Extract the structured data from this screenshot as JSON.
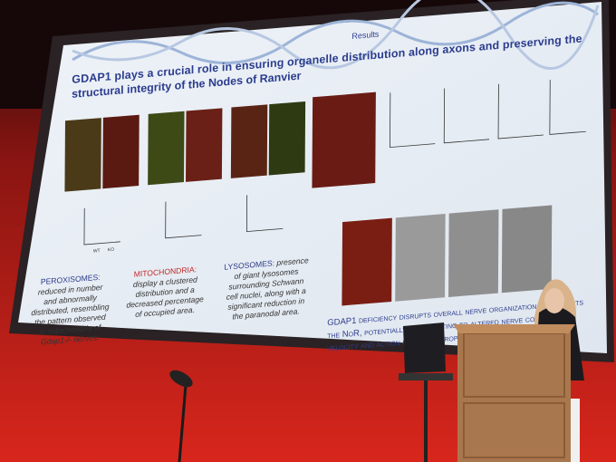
{
  "slide": {
    "section": "Results",
    "title_lines": [
      "GDAP1 plays a crucial role in ensuring organelle distribution along axons and preserving the",
      "structural integrity of the Nodes of Ranvier"
    ],
    "captions": [
      {
        "heading": "PEROXISOMES:",
        "lines": [
          "reduced in number",
          "and abnormally",
          "distributed, resembling",
          "the pattern observed",
          "in mitochondria of",
          "Gdap1-/- nerves."
        ]
      },
      {
        "heading": "MITOCHONDRIA:",
        "lines": [
          "display a clustered",
          "distribution and a",
          "decreased percentage",
          "of occupied area."
        ]
      },
      {
        "heading": "LYSOSOMES:",
        "lines": [
          "presence",
          "of giant lysosomes",
          "surrounding Schwann",
          "cell nuclei, along with a",
          "significant reduction in",
          "the paranodal area."
        ]
      }
    ],
    "conclusion_lines": [
      "GDAP1 deficiency disrupts overall nerve organization and affects",
      "the NoR, potentially contributing to altered nerve conduction",
      "velocity and action potential propagation."
    ],
    "group_labels": [
      "WT",
      "KO"
    ]
  }
}
